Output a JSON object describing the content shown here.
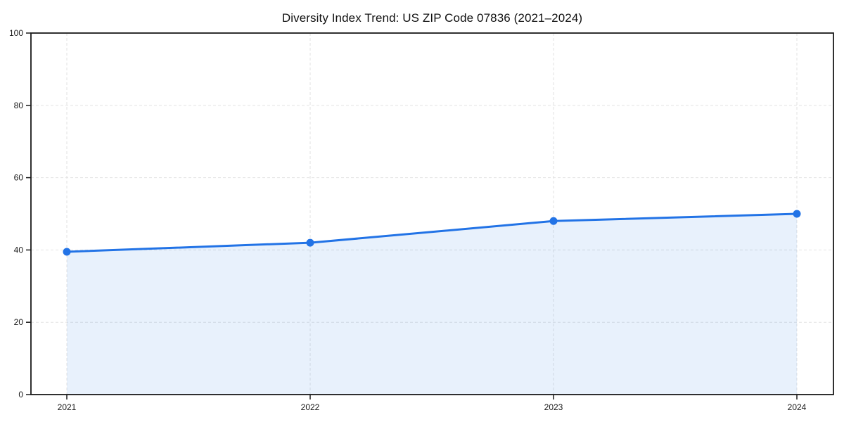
{
  "chart_data": {
    "type": "line",
    "title": "Diversity Index Trend: US ZIP Code 07836 (2021–2024)",
    "categories": [
      "2021",
      "2022",
      "2023",
      "2024"
    ],
    "series": [
      {
        "name": "Diversity Index",
        "values": [
          39.5,
          42,
          48,
          50
        ]
      }
    ],
    "xlabel": "",
    "ylabel": "",
    "ylim": [
      0,
      100
    ],
    "yticks": [
      0,
      20,
      40,
      60,
      80,
      100
    ],
    "grid": true,
    "grid_style": "dashed",
    "legend_position": "none",
    "area_fill": true,
    "area_opacity": 0.1,
    "colors": {
      "line": "#2273e6",
      "marker": "#2273e6",
      "area": "#2273e6",
      "grid": "#e2e2e2",
      "axis": "#1a1a1a",
      "tick_label": "#1a1a1a",
      "title": "#111111",
      "background": "#ffffff"
    }
  }
}
